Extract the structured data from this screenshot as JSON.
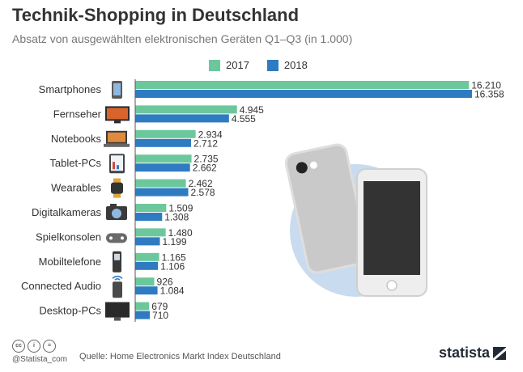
{
  "title": "Technik-Shopping in Deutschland",
  "subtitle": "Absatz von ausgewählten elektronischen Geräten Q1–Q3 (in 1.000)",
  "legend": [
    {
      "label": "2017",
      "color": "#6cc89c"
    },
    {
      "label": "2018",
      "color": "#2f7bc1"
    }
  ],
  "footer": {
    "handle": "@Statista_com",
    "source": "Quelle: Home Electronics Markt Index Deutschland",
    "brand": "statista",
    "cc_badges": [
      "cc",
      "i",
      "="
    ]
  },
  "chart_data": {
    "type": "bar",
    "orientation": "horizontal",
    "categories": [
      "Smartphones",
      "Fernseher",
      "Notebooks",
      "Tablet-PCs",
      "Wearables",
      "Digitalkameras",
      "Spielkonsolen",
      "Mobiltelefone",
      "Connected Audio",
      "Desktop-PCs"
    ],
    "category_icons": [
      "smartphone-icon",
      "tv-icon",
      "notebook-icon",
      "tablet-icon",
      "smartwatch-icon",
      "camera-icon",
      "gamepad-icon",
      "mobile-phone-icon",
      "speaker-icon",
      "monitor-icon"
    ],
    "series": [
      {
        "name": "2017",
        "color": "#6cc89c",
        "values": [
          16210,
          4945,
          2934,
          2735,
          2462,
          1509,
          1480,
          1165,
          926,
          679
        ],
        "labels": [
          "16.210",
          "4.945",
          "2.934",
          "2.735",
          "2.462",
          "1.509",
          "1.480",
          "1.165",
          "926",
          "679"
        ]
      },
      {
        "name": "2018",
        "color": "#2f7bc1",
        "values": [
          16358,
          4555,
          2712,
          2662,
          2578,
          1308,
          1199,
          1106,
          1084,
          710
        ],
        "labels": [
          "16.358",
          "4.555",
          "2.712",
          "2.662",
          "2.578",
          "1.308",
          "1.199",
          "1.106",
          "1.084",
          "710"
        ]
      }
    ],
    "xlim": [
      0,
      16358
    ],
    "grid": false,
    "legend_position": "top"
  }
}
